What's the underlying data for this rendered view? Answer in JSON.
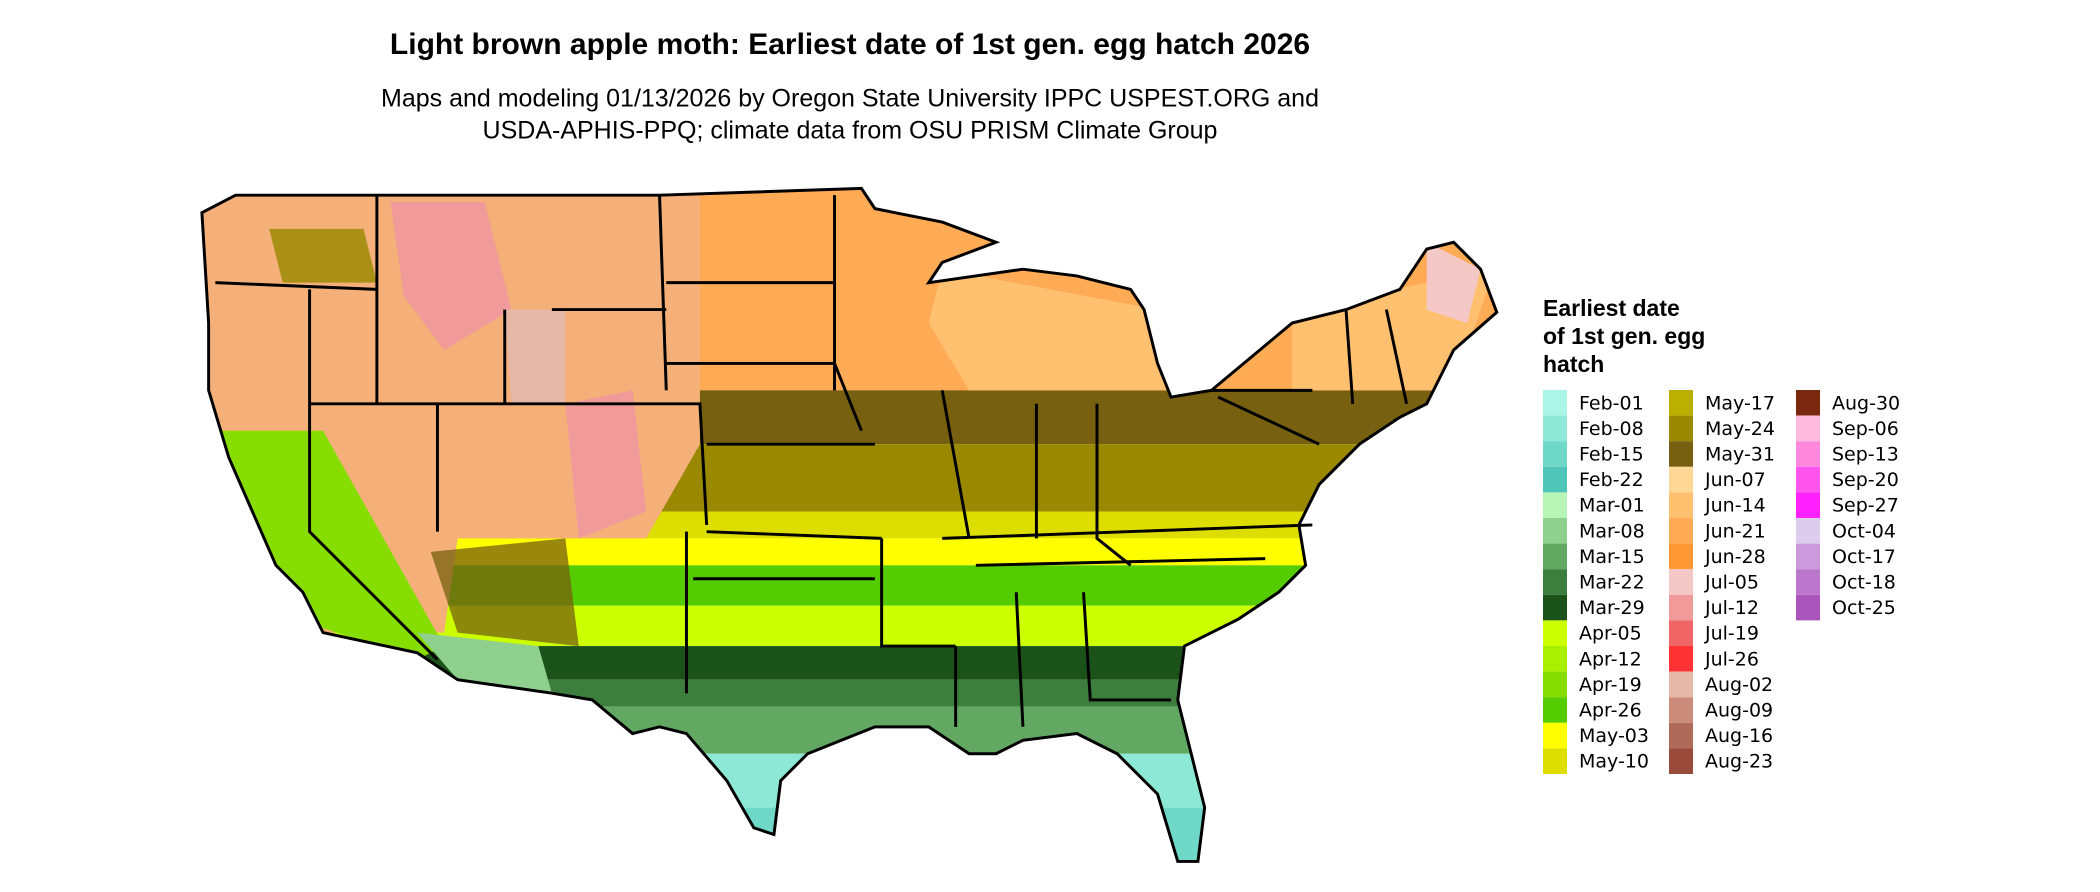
{
  "title": "Light brown apple moth: Earliest date of 1st gen. egg hatch 2026",
  "subtitle": [
    "Maps and modeling 01/13/2026 by Oregon State University IPPC USPEST.ORG and",
    "USDA-APHIS-PPQ; climate data from OSU PRISM Climate Group"
  ],
  "legend": {
    "title": [
      "Earliest date",
      "of 1st gen. egg",
      "hatch"
    ],
    "items": [
      {
        "label": "Feb-01",
        "color": "#aaf5e5"
      },
      {
        "label": "Feb-08",
        "color": "#8ee8d6"
      },
      {
        "label": "Feb-15",
        "color": "#6fd8c8"
      },
      {
        "label": "Feb-22",
        "color": "#4fc4b8"
      },
      {
        "label": "Mar-01",
        "color": "#b6f5b6"
      },
      {
        "label": "Mar-08",
        "color": "#8fd08f"
      },
      {
        "label": "Mar-15",
        "color": "#62a862"
      },
      {
        "label": "Mar-22",
        "color": "#3d7d3d"
      },
      {
        "label": "Mar-29",
        "color": "#1a521a"
      },
      {
        "label": "Apr-05",
        "color": "#ccff00"
      },
      {
        "label": "Apr-12",
        "color": "#aaee00"
      },
      {
        "label": "Apr-19",
        "color": "#88dd00"
      },
      {
        "label": "Apr-26",
        "color": "#55cc00"
      },
      {
        "label": "May-03",
        "color": "#ffff00"
      },
      {
        "label": "May-10",
        "color": "#dddd00"
      },
      {
        "label": "May-17",
        "color": "#bbb000"
      },
      {
        "label": "May-24",
        "color": "#998800"
      },
      {
        "label": "May-31",
        "color": "#776010"
      },
      {
        "label": "Jun-07",
        "color": "#ffd898"
      },
      {
        "label": "Jun-14",
        "color": "#ffc070"
      },
      {
        "label": "Jun-21",
        "color": "#ffaa55"
      },
      {
        "label": "Jun-28",
        "color": "#ff9933"
      },
      {
        "label": "Jul-05",
        "color": "#f5c8c8"
      },
      {
        "label": "Jul-12",
        "color": "#f09a9a"
      },
      {
        "label": "Jul-19",
        "color": "#f06666"
      },
      {
        "label": "Jul-26",
        "color": "#ff3333"
      },
      {
        "label": "Aug-02",
        "color": "#e6b8a8"
      },
      {
        "label": "Aug-09",
        "color": "#cc8c7c"
      },
      {
        "label": "Aug-16",
        "color": "#b06a5a"
      },
      {
        "label": "Aug-23",
        "color": "#9a4a3a"
      },
      {
        "label": "Aug-30",
        "color": "#7a2810"
      },
      {
        "label": "Sep-06",
        "color": "#ffbbdd"
      },
      {
        "label": "Sep-13",
        "color": "#ff88dd"
      },
      {
        "label": "Sep-20",
        "color": "#ff55ee"
      },
      {
        "label": "Sep-27",
        "color": "#ff22ff"
      },
      {
        "label": "Oct-04",
        "color": "#ddccee"
      },
      {
        "label": "Oct-17",
        "color": "#cc99dd"
      },
      {
        "label": "Oct-18",
        "color": "#bb77cc"
      },
      {
        "label": "Oct-25",
        "color": "#aa55bb"
      }
    ]
  }
}
